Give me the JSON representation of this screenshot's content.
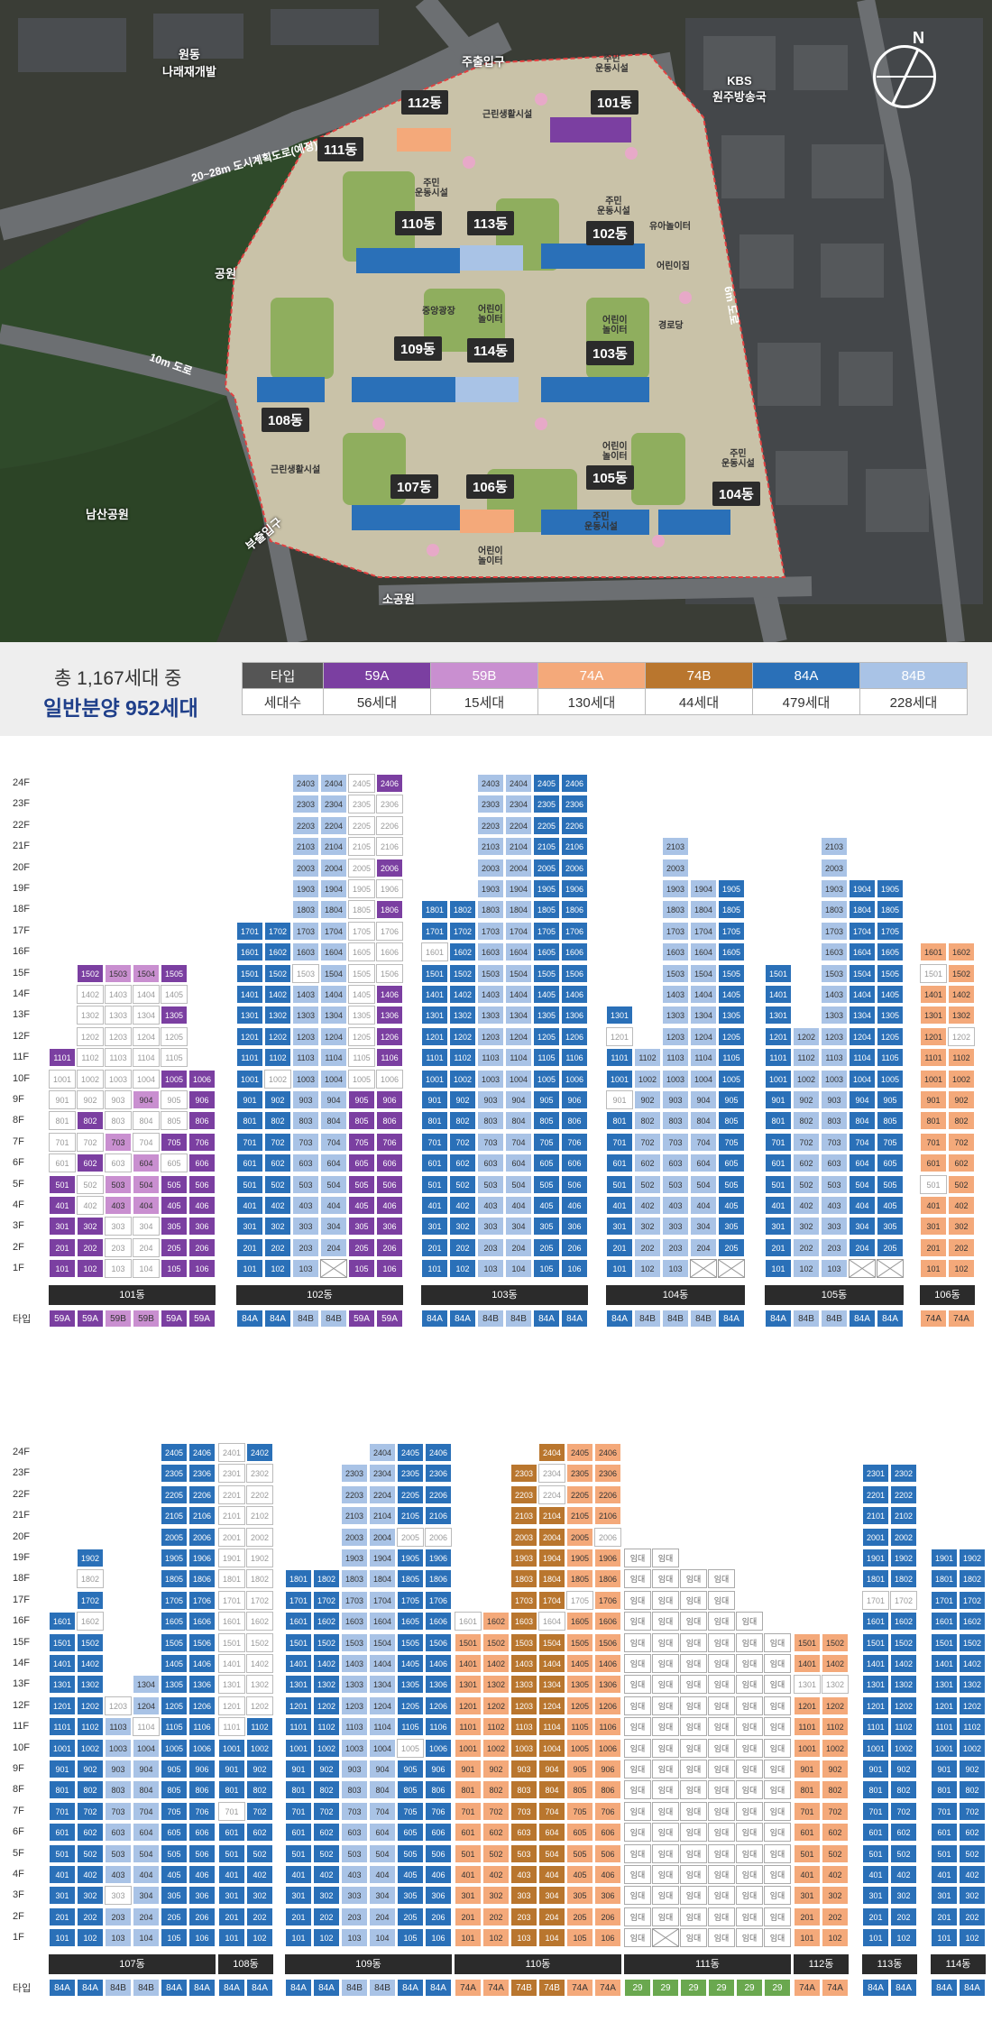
{
  "colors": {
    "59A": "#7b3fa1",
    "59B": "#c98fd0",
    "74A": "#f4a97a",
    "74B": "#b9762e",
    "84A": "#2a70b8",
    "84B": "#a9c3e6",
    "29": "#6aa84f",
    "unsold": "#ffffff",
    "rental": "#ffffff"
  },
  "map": {
    "labels": {
      "redevelop": "원동\n나래재개발",
      "kbs": "KBS\n원주방송국",
      "park": "공원",
      "namsan": "남산공원",
      "road20": "20~28m 도시계획도로(예정)",
      "road10": "10m 도로",
      "road6": "6m 도로",
      "main_gate": "주출입구",
      "sub_gate": "부출입구",
      "small_park": "소공원"
    },
    "buildings": [
      "101동",
      "102동",
      "103동",
      "104동",
      "105동",
      "106동",
      "107동",
      "108동",
      "109동",
      "110동",
      "111동",
      "112동",
      "113동",
      "114동"
    ],
    "facilities": {
      "f1": "근린생활시설",
      "f2": "주민\n운동시설",
      "f3": "주민\n운동시설",
      "f4": "주민\n운동시설",
      "f5": "유아놀이터",
      "f6": "어린이집",
      "f7": "중앙광장",
      "f8": "어린이\n놀이터",
      "f9": "어린이\n놀이터",
      "f10": "경로당",
      "f11": "어린이\n놀이터",
      "f12": "주민\n운동시설",
      "f13": "근린생활시설",
      "f14": "어린이\n놀이터",
      "f15": "주민\n운동시설"
    }
  },
  "summary": {
    "title": "총 1,167세대 중",
    "subtitle": "일반분양 952세대",
    "header_label": "타입",
    "row_label": "세대수",
    "types": [
      {
        "name": "59A",
        "count": "56세대"
      },
      {
        "name": "59B",
        "count": "15세대"
      },
      {
        "name": "74A",
        "count": "130세대"
      },
      {
        "name": "74B",
        "count": "44세대"
      },
      {
        "name": "84A",
        "count": "479세대"
      },
      {
        "name": "84B",
        "count": "228세대"
      }
    ]
  },
  "floor_labels": [
    "24F",
    "23F",
    "22F",
    "21F",
    "20F",
    "19F",
    "18F",
    "17F",
    "16F",
    "15F",
    "14F",
    "13F",
    "12F",
    "11F",
    "10F",
    "9F",
    "8F",
    "7F",
    "6F",
    "5F",
    "4F",
    "3F",
    "2F",
    "1F"
  ],
  "type_row_label": "타입",
  "chart1": {
    "buildings": [
      {
        "name": "101동",
        "top": 16,
        "cols": [
          "59A",
          "59A",
          "59B",
          "59B",
          "59A",
          "59A"
        ],
        "units": 6,
        "colstart": [
          11,
          15,
          15,
          15,
          15,
          10
        ],
        "unsold": {
          "1502": 0,
          "1402": 1,
          "1403": 1,
          "1404": 1,
          "1405": 1,
          "1302": 1,
          "1303": 1,
          "1304": 1,
          "1202": 1,
          "1203": 1,
          "1204": 1,
          "1205": 1,
          "1102": 1,
          "1103": 1,
          "1104": 1,
          "1105": 1,
          "1001": 1,
          "1002": 1,
          "1003": 1,
          "1004": 1,
          "901": 1,
          "902": 1,
          "903": 1,
          "905": 1,
          "801": 1,
          "803": 1,
          "804": 1,
          "805": 1,
          "701": 1,
          "702": 1,
          "704": 1,
          "601": 1,
          "603": 1,
          "605": 1,
          "502": 1,
          "402": 1,
          "303": 1,
          "304": 1,
          "203": 1,
          "204": 1,
          "103": 1,
          "104": 1
        },
        "missing": []
      },
      {
        "name": "102동",
        "top": 24,
        "cols": [
          "84A",
          "84A",
          "84B",
          "84B",
          "59A",
          "59A"
        ],
        "units": 6,
        "colstart": [
          17,
          17,
          24,
          24,
          24,
          24
        ],
        "unsold": {
          "2405": 1,
          "2305": 1,
          "2306": 1,
          "2205": 1,
          "2206": 1,
          "2105": 1,
          "2106": 1,
          "2005": 1,
          "1905": 1,
          "1906": 1,
          "1805": 1,
          "1705": 1,
          "1706": 1,
          "1605": 1,
          "1606": 1,
          "1503": 1,
          "1505": 1,
          "1506": 1,
          "1405": 1,
          "1305": 1,
          "1205": 1,
          "1105": 1,
          "1002": 1,
          "1005": 1,
          "1006": 1
        },
        "missing": [
          "104"
        ]
      },
      {
        "name": "103동",
        "top": 24,
        "cols": [
          "84A",
          "84A",
          "84B",
          "84B",
          "84A",
          "84A"
        ],
        "units": 6,
        "colstart": [
          18,
          18,
          24,
          24,
          24,
          24
        ],
        "unsold": {
          "1601": 1
        },
        "missing": []
      },
      {
        "name": "104동",
        "top": 21,
        "cols": [
          "84A",
          "84B",
          "84B",
          "84B",
          "84A"
        ],
        "units": 5,
        "colstart": [
          13,
          11,
          21,
          19,
          19
        ],
        "unsold": {
          "1201": 1,
          "901": 1
        },
        "missing": [
          "104",
          "105"
        ]
      },
      {
        "name": "105동",
        "top": 21,
        "cols": [
          "84A",
          "84B",
          "84B",
          "84A",
          "84A"
        ],
        "units": 5,
        "colstart": [
          15,
          12,
          21,
          19,
          19
        ],
        "unsold": {},
        "missing": [
          "104",
          "105"
        ]
      },
      {
        "name": "106동",
        "top": 16,
        "cols": [
          "74A",
          "74A"
        ],
        "units": 2,
        "colstart": [
          16,
          16
        ],
        "unsold": {
          "1501": 1,
          "1202": 1,
          "501": 1
        },
        "missing": []
      }
    ]
  },
  "chart2": {
    "buildings": [
      {
        "name": "107동",
        "cols": [
          "84A",
          "84A",
          "84B",
          "84B",
          "84A",
          "84A"
        ],
        "units": 6,
        "colstart": [
          16,
          19,
          12,
          13,
          24,
          24
        ],
        "unsold": {
          "1602": 1,
          "1802": 1,
          "1203": 1,
          "1104": 1,
          "303": 1
        },
        "missing": []
      },
      {
        "name": "108동",
        "cols": [
          "84A",
          "84A"
        ],
        "units": 2,
        "colstart": [
          24,
          24
        ],
        "unsold": {
          "2401": 1,
          "2301": 1,
          "2302": 1,
          "2201": 1,
          "2202": 1,
          "2101": 1,
          "2102": 1,
          "2001": 1,
          "2002": 1,
          "1901": 1,
          "1902": 1,
          "1801": 1,
          "1802": 1,
          "1701": 1,
          "1702": 1,
          "1601": 1,
          "1602": 1,
          "1501": 1,
          "1502": 1,
          "1401": 1,
          "1402": 1,
          "1301": 1,
          "1302": 1,
          "1201": 1,
          "1202": 1,
          "1101": 1,
          "701": 1
        },
        "missing": []
      },
      {
        "name": "109동",
        "cols": [
          "84A",
          "84A",
          "84B",
          "84B",
          "84A",
          "84A"
        ],
        "units": 6,
        "colstart": [
          18,
          18,
          23,
          24,
          24,
          24
        ],
        "unsold": {
          "2005": 1,
          "2006": 1,
          "1005": 1
        },
        "missing": []
      },
      {
        "name": "110동",
        "cols": [
          "74A",
          "74A",
          "74B",
          "74B",
          "74A",
          "74A"
        ],
        "units": 6,
        "colstart": [
          16,
          16,
          23,
          24,
          24,
          24
        ],
        "unsold": {
          "2304": 1,
          "2204": 1,
          "2006": 1,
          "1705": 1,
          "1601": 1,
          "1604": 1
        },
        "missing": []
      },
      {
        "name": "111동",
        "cols": [
          "29",
          "29",
          "29",
          "29",
          "29",
          "29"
        ],
        "units": 6,
        "rental": true,
        "rental_label": "임대",
        "colstart": [
          19,
          19,
          18,
          18,
          16,
          15
        ],
        "unsold": {},
        "missing": [
          "102"
        ]
      },
      {
        "name": "112동",
        "cols": [
          "74A",
          "74A"
        ],
        "units": 2,
        "colstart": [
          15,
          15
        ],
        "unsold": {
          "1301": 1,
          "1302": 1
        },
        "missing": []
      },
      {
        "name": "113동",
        "cols": [
          "84A",
          "84A"
        ],
        "units": 2,
        "colstart": [
          23,
          23
        ],
        "unsold": {
          "1701": 1,
          "1702": 1
        },
        "missing": []
      },
      {
        "name": "114동",
        "cols": [
          "84A",
          "84A"
        ],
        "units": 2,
        "colstart": [
          19,
          19
        ],
        "unsold": {},
        "missing": []
      }
    ]
  }
}
